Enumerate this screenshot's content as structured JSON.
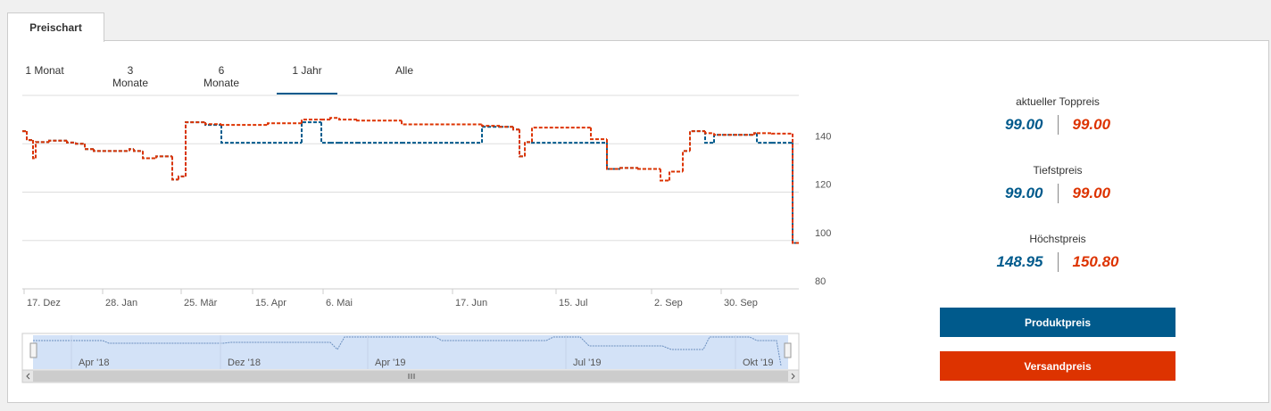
{
  "tab": "Preischart",
  "range_selector": {
    "options": [
      "1 Monat",
      "3 Monate",
      "6 Monate",
      "1 Jahr",
      "Alle"
    ],
    "selected_index": 3
  },
  "chart_data": {
    "type": "line",
    "step": true,
    "dashed": true,
    "grid": true,
    "x": [
      0,
      0.5,
      1.2,
      1.5,
      3,
      5,
      6,
      7,
      8,
      12,
      12.5,
      13.5,
      15,
      16.8,
      17.5,
      18.3,
      20.5,
      22.3,
      27.5,
      31.3,
      33.5,
      34.5,
      35.5,
      37.5,
      42.5,
      51.5,
      53.5,
      55,
      55.7,
      56.3,
      57.1,
      63.7,
      65.5,
      67,
      69,
      71.5,
      72.5,
      74,
      74.8,
      76.5,
      77.5,
      82,
      82.3,
      84,
      86.3
    ],
    "series": [
      {
        "name": "Produktpreis",
        "color": "#005a8c",
        "values": [
          145.2,
          141.5,
          134,
          140.7,
          141.3,
          140.5,
          140,
          137.8,
          137,
          137.8,
          137,
          134,
          134.8,
          125.2,
          126.5,
          148.9,
          147.8,
          140.4,
          140.4,
          148.9,
          140.4,
          140.4,
          140.4,
          140.4,
          140.4,
          147,
          147,
          145.9,
          134.8,
          140.7,
          140.4,
          140.4,
          129.6,
          130,
          129.6,
          124.8,
          128.5,
          137,
          145.2,
          140.4,
          143.7,
          144.4,
          140.4,
          140.4,
          99
        ]
      },
      {
        "name": "Versandpreis",
        "color": "#dd3300",
        "values": [
          145.2,
          141.5,
          134,
          140.7,
          141.3,
          140.5,
          140,
          137.8,
          137,
          137.8,
          137,
          134,
          134.8,
          125.2,
          126.5,
          148.9,
          148.1,
          147.8,
          148.5,
          150,
          150,
          150.7,
          150,
          149.6,
          148,
          147.4,
          147,
          145.9,
          134.8,
          140.7,
          146.7,
          141.9,
          129.6,
          130,
          129.6,
          124.8,
          128.5,
          137,
          145.2,
          144.4,
          143.7,
          144.4,
          144.4,
          144.2,
          99
        ]
      }
    ],
    "xlim": [
      0,
      87
    ],
    "xticks": [
      {
        "value": 0.2,
        "label": "17. Dez"
      },
      {
        "value": 9,
        "label": "28. Jan"
      },
      {
        "value": 17.8,
        "label": "25. Mär"
      },
      {
        "value": 25.8,
        "label": "15. Apr"
      },
      {
        "value": 33.7,
        "label": "6. Mai"
      },
      {
        "value": 48.2,
        "label": "17. Jun"
      },
      {
        "value": 59.8,
        "label": "15. Jul"
      },
      {
        "value": 70.5,
        "label": "2. Sep"
      },
      {
        "value": 78.3,
        "label": "30. Sep"
      }
    ],
    "ylim": [
      80,
      160
    ],
    "yticks": [
      80,
      100,
      120,
      140
    ]
  },
  "navigator": {
    "labels": [
      "Apr '18",
      "Dez '18",
      "Apr '19",
      "Jul '19",
      "Okt '19"
    ]
  },
  "stats": [
    {
      "label": "aktueller Toppreis",
      "values": [
        "99.00",
        "99.00"
      ]
    },
    {
      "label": "Tiefstpreis",
      "values": [
        "99.00",
        "99.00"
      ]
    },
    {
      "label": "Höchstpreis",
      "values": [
        "148.95",
        "150.80"
      ]
    }
  ]
}
